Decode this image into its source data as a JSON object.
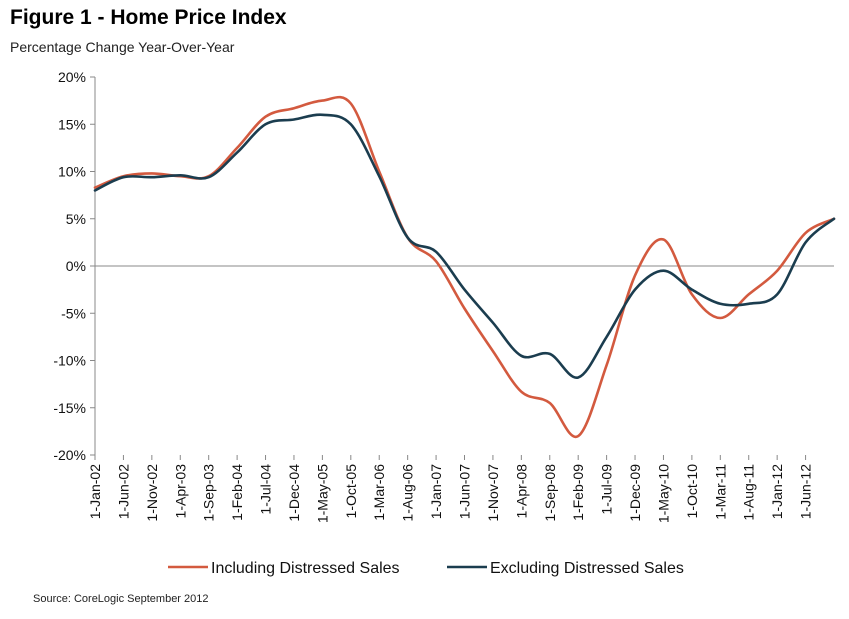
{
  "header": {
    "title": "Figure 1 - Home Price Index",
    "subtitle": "Percentage Change Year-Over-Year"
  },
  "footer": {
    "source": "Source: CoreLogic  September 2012"
  },
  "colors": {
    "including": "#d35a3f",
    "excluding": "#1b3d4f",
    "axis": "#888888"
  },
  "chart_data": {
    "type": "line",
    "title": "Figure 1 - Home Price Index",
    "subtitle": "Percentage Change Year-Over-Year",
    "xlabel": "",
    "ylabel": "",
    "ylim": [
      -20,
      20
    ],
    "y_ticks": [
      "20%",
      "15%",
      "10%",
      "5%",
      "0%",
      "-5%",
      "-10%",
      "-15%",
      "-20%"
    ],
    "x_tick_labels": [
      "1-Jan-02",
      "1-Jun-02",
      "1-Nov-02",
      "1-Apr-03",
      "1-Sep-03",
      "1-Feb-04",
      "1-Jul-04",
      "1-Dec-04",
      "1-May-05",
      "1-Oct-05",
      "1-Mar-06",
      "1-Aug-06",
      "1-Jan-07",
      "1-Jun-07",
      "1-Nov-07",
      "1-Apr-08",
      "1-Sep-08",
      "1-Feb-09",
      "1-Jul-09",
      "1-Dec-09",
      "1-May-10",
      "1-Oct-10",
      "1-Mar-11",
      "1-Aug-11",
      "1-Jan-12",
      "1-Jun-12"
    ],
    "grid": false,
    "legend": "bottom",
    "x": [
      "Jan-02",
      "Jun-02",
      "Nov-02",
      "Apr-03",
      "Sep-03",
      "Feb-04",
      "Jul-04",
      "Dec-04",
      "May-05",
      "Oct-05",
      "Mar-06",
      "Aug-06",
      "Jan-07",
      "Jun-07",
      "Nov-07",
      "Apr-08",
      "Sep-08",
      "Feb-09",
      "Jul-09",
      "Dec-09",
      "May-10",
      "Oct-10",
      "Mar-11",
      "Aug-11",
      "Jan-12",
      "Jun-12",
      "Aug-12"
    ],
    "series": [
      {
        "name": "Including Distressed Sales",
        "values": [
          8.3,
          9.5,
          9.8,
          9.5,
          9.5,
          12.5,
          15.8,
          16.7,
          17.5,
          17.2,
          10.0,
          3.0,
          0.5,
          -4.5,
          -9.0,
          -13.3,
          -14.5,
          -18.0,
          -10.5,
          -1.0,
          2.8,
          -3.0,
          -5.5,
          -3.0,
          -0.5,
          3.5,
          5.0
        ]
      },
      {
        "name": "Excluding Distressed Sales",
        "values": [
          8.0,
          9.4,
          9.4,
          9.6,
          9.4,
          12.0,
          15.0,
          15.5,
          16.0,
          15.0,
          9.5,
          3.0,
          1.5,
          -2.5,
          -6.0,
          -9.5,
          -9.3,
          -11.8,
          -7.5,
          -2.5,
          -0.5,
          -2.5,
          -4.0,
          -4.0,
          -3.0,
          2.5,
          5.0
        ]
      }
    ]
  }
}
